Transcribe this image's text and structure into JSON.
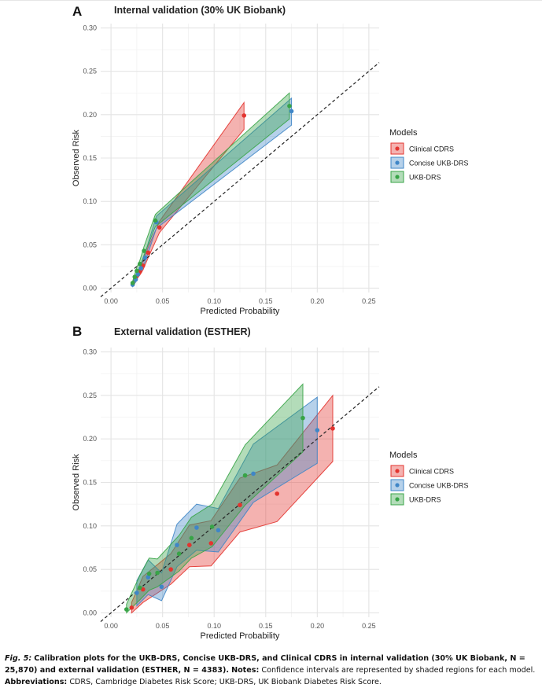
{
  "figure": {
    "panel_labels": [
      "A",
      "B"
    ],
    "x_label": "Predicted Probability",
    "y_label": "Observed Risk",
    "legend_title": "Models"
  },
  "caption": {
    "label": "Fig. 5:",
    "bold_text": "Calibration plots for the UKB-DRS, Concise UKB-DRS, and Clinical CDRS in internal validation (30% UK Biobank, N = 25,870) and external validation (ESTHER, N = 4383).",
    "notes_label": "Notes:",
    "notes_text": "Confidence intervals are represented by shaded regions for each model.",
    "abbr_label": "Abbreviations:",
    "abbr_text": "CDRS, Cambridge Diabetes Risk Score; UKB-DRS, UK Biobank Diabetes Risk Score."
  },
  "chart_data": [
    {
      "type": "line",
      "title": "Internal validation (30% UK Biobank)",
      "xlabel": "Predicted Probability",
      "ylabel": "Observed Risk",
      "xlim": [
        -0.01,
        0.26
      ],
      "ylim": [
        -0.005,
        0.305
      ],
      "xticks": [
        "0.00",
        "0.05",
        "0.10",
        "0.15",
        "0.20",
        "0.25"
      ],
      "yticks": [
        "0.00",
        "0.05",
        "0.10",
        "0.15",
        "0.20",
        "0.25",
        "0.30"
      ],
      "reference_line": "y = x (dashed)",
      "legend": "right",
      "grid": true,
      "series": [
        {
          "name": "Clinical CDRS",
          "color": "#e3342f",
          "x": [
            0.021,
            0.024,
            0.028,
            0.031,
            0.036,
            0.047,
            0.129
          ],
          "y": [
            0.005,
            0.012,
            0.019,
            0.026,
            0.041,
            0.07,
            0.199
          ],
          "lower": [
            0.003,
            0.009,
            0.015,
            0.021,
            0.035,
            0.064,
            0.183
          ],
          "upper": [
            0.007,
            0.015,
            0.024,
            0.031,
            0.047,
            0.077,
            0.214
          ]
        },
        {
          "name": "Concise UKB-DRS",
          "color": "#3f86c7",
          "x": [
            0.021,
            0.024,
            0.026,
            0.029,
            0.033,
            0.044,
            0.175
          ],
          "y": [
            0.004,
            0.01,
            0.016,
            0.023,
            0.035,
            0.076,
            0.204
          ],
          "lower": [
            0.002,
            0.007,
            0.013,
            0.019,
            0.03,
            0.069,
            0.188
          ],
          "upper": [
            0.006,
            0.013,
            0.019,
            0.027,
            0.04,
            0.083,
            0.219
          ]
        },
        {
          "name": "UKB-DRS",
          "color": "#38a447",
          "x": [
            0.021,
            0.023,
            0.025,
            0.028,
            0.032,
            0.043,
            0.173
          ],
          "y": [
            0.006,
            0.013,
            0.02,
            0.028,
            0.043,
            0.078,
            0.21
          ],
          "lower": [
            0.004,
            0.01,
            0.016,
            0.024,
            0.038,
            0.071,
            0.195
          ],
          "upper": [
            0.008,
            0.016,
            0.024,
            0.032,
            0.048,
            0.085,
            0.225
          ]
        }
      ]
    },
    {
      "type": "line",
      "title": "External validation (ESTHER)",
      "xlabel": "Predicted Probability",
      "ylabel": "Observed Risk",
      "xlim": [
        -0.01,
        0.26
      ],
      "ylim": [
        -0.005,
        0.305
      ],
      "xticks": [
        "0.00",
        "0.05",
        "0.10",
        "0.15",
        "0.20",
        "0.25"
      ],
      "yticks": [
        "0.00",
        "0.05",
        "0.10",
        "0.15",
        "0.20",
        "0.25",
        "0.30"
      ],
      "reference_line": "y = x (dashed)",
      "legend": "right",
      "grid": true,
      "series": [
        {
          "name": "Clinical CDRS",
          "color": "#e3342f",
          "x": [
            0.02,
            0.031,
            0.058,
            0.076,
            0.097,
            0.125,
            0.161,
            0.215
          ],
          "y": [
            0.006,
            0.027,
            0.05,
            0.078,
            0.08,
            0.124,
            0.137,
            0.212
          ],
          "lower": [
            0.0,
            0.012,
            0.033,
            0.053,
            0.054,
            0.093,
            0.105,
            0.174
          ],
          "upper": [
            0.012,
            0.042,
            0.068,
            0.101,
            0.106,
            0.155,
            0.17,
            0.25
          ]
        },
        {
          "name": "Concise UKB-DRS",
          "color": "#3f86c7",
          "x": [
            0.025,
            0.036,
            0.049,
            0.064,
            0.083,
            0.104,
            0.138,
            0.2
          ],
          "y": [
            0.023,
            0.041,
            0.03,
            0.078,
            0.098,
            0.095,
            0.16,
            0.21
          ],
          "lower": [
            0.008,
            0.021,
            0.014,
            0.053,
            0.072,
            0.07,
            0.127,
            0.172
          ],
          "upper": [
            0.037,
            0.061,
            0.046,
            0.102,
            0.125,
            0.12,
            0.194,
            0.248
          ]
        },
        {
          "name": "UKB-DRS",
          "color": "#38a447",
          "x": [
            0.015,
            0.028,
            0.037,
            0.045,
            0.066,
            0.078,
            0.098,
            0.13,
            0.186
          ],
          "y": [
            0.004,
            0.029,
            0.045,
            0.046,
            0.068,
            0.086,
            0.099,
            0.158,
            0.224
          ],
          "lower": [
            0.0,
            0.015,
            0.026,
            0.03,
            0.048,
            0.063,
            0.076,
            0.124,
            0.185
          ],
          "upper": [
            0.01,
            0.043,
            0.063,
            0.062,
            0.089,
            0.11,
            0.125,
            0.193,
            0.263
          ]
        }
      ]
    }
  ]
}
